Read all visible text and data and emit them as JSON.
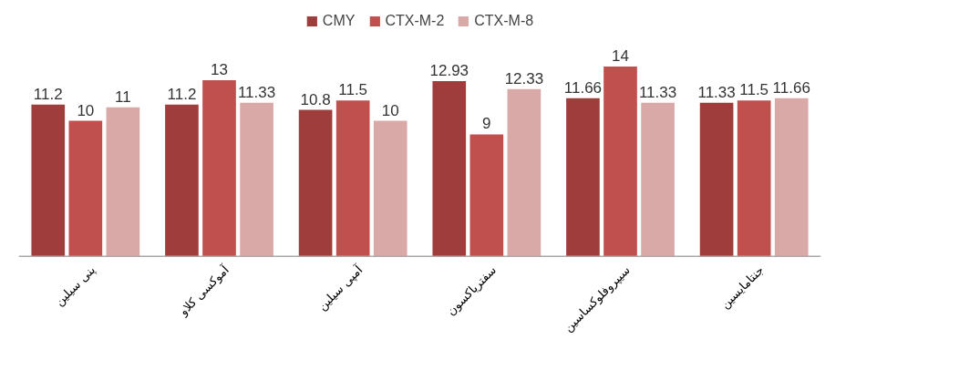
{
  "chart_data": {
    "type": "bar",
    "categories": [
      "پنی سیلین",
      "آموکسی کلاو",
      "آمپی سیلین",
      "سفتریاکسون",
      "سیپروفلوکساسین",
      "جنتامایسین"
    ],
    "series": [
      {
        "name": "CMY",
        "color": "#9e3d3b",
        "values": [
          11.2,
          11.2,
          10.8,
          12.93,
          11.66,
          11.33
        ]
      },
      {
        "name": "CTX-M-2",
        "color": "#c0504d",
        "values": [
          10,
          13,
          11.5,
          9,
          14,
          11.5
        ]
      },
      {
        "name": "CTX-M-8",
        "color": "#d9a9a8",
        "values": [
          11,
          11.33,
          10,
          12.33,
          11.33,
          11.66
        ]
      }
    ],
    "data_labels": true,
    "grid": false,
    "legend": "top"
  }
}
